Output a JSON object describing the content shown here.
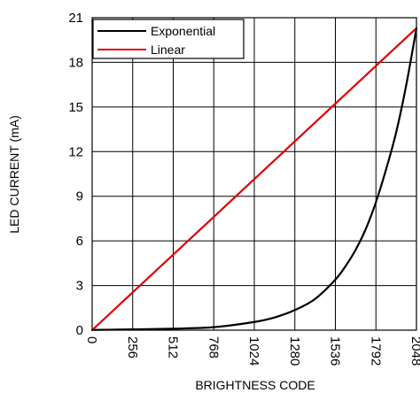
{
  "chart_data": {
    "type": "line",
    "xlabel": "BRIGHTNESS CODE",
    "ylabel": "LED CURRENT (mA)",
    "xlim": [
      0,
      2048
    ],
    "ylim": [
      0,
      21
    ],
    "x_ticks": [
      "0",
      "256",
      "512",
      "768",
      "1024",
      "1280",
      "1536",
      "1792",
      "2048"
    ],
    "y_ticks": [
      "0",
      "3",
      "6",
      "9",
      "12",
      "15",
      "18",
      "21"
    ],
    "grid": true,
    "legend_position": "top-left",
    "series": [
      {
        "name": "Exponential",
        "color": "#000000",
        "x": [
          0,
          256,
          512,
          768,
          1024,
          1152,
          1280,
          1408,
          1536,
          1600,
          1664,
          1728,
          1792,
          1856,
          1920,
          1984,
          2048
        ],
        "y": [
          0.02,
          0.05,
          0.1,
          0.2,
          0.55,
          0.85,
          1.35,
          2.1,
          3.4,
          4.3,
          5.4,
          6.8,
          8.6,
          10.8,
          13.3,
          16.5,
          20.3
        ]
      },
      {
        "name": "Linear",
        "color": "#e00000",
        "x": [
          0,
          2048
        ],
        "y": [
          0,
          20.3
        ]
      }
    ]
  }
}
